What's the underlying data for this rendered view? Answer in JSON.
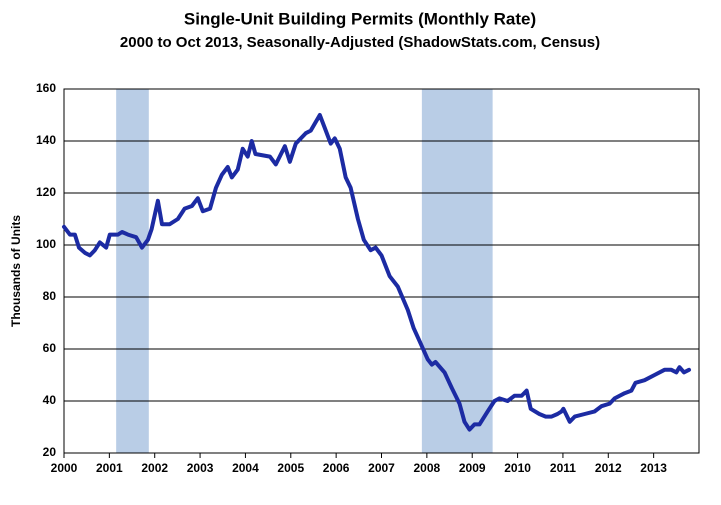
{
  "chart_data": {
    "type": "line",
    "title": "Single-Unit Building Permits (Monthly Rate)",
    "subtitle": "2000 to Oct 2013, Seasonally-Adjusted (ShadowStats.com, Census)",
    "y_label": "Thousands of Units",
    "xlim": [
      2000,
      2014
    ],
    "xticks": [
      2000,
      2001,
      2002,
      2003,
      2004,
      2005,
      2006,
      2007,
      2008,
      2009,
      2010,
      2011,
      2012,
      2013
    ],
    "ylim": [
      20,
      160
    ],
    "yticks": [
      20,
      40,
      60,
      80,
      100,
      120,
      140,
      160
    ],
    "grid": true,
    "shaded_periods": [
      [
        2001.15,
        2001.87
      ],
      [
        2007.89,
        2009.45
      ]
    ],
    "shade_color": "#b9cde6",
    "x": [
      2000.0,
      2000.13,
      2000.24,
      2000.33,
      2000.46,
      2000.57,
      2000.68,
      2000.79,
      2000.93,
      2001.01,
      2001.19,
      2001.28,
      2001.41,
      2001.59,
      2001.72,
      2001.85,
      2001.93,
      2002.07,
      2002.16,
      2002.33,
      2002.51,
      2002.66,
      2002.82,
      2002.95,
      2003.06,
      2003.22,
      2003.35,
      2003.48,
      2003.61,
      2003.7,
      2003.83,
      2003.94,
      2004.05,
      2004.14,
      2004.22,
      2004.54,
      2004.67,
      2004.87,
      2004.98,
      2005.11,
      2005.33,
      2005.44,
      2005.64,
      2005.75,
      2005.88,
      2005.97,
      2006.08,
      2006.21,
      2006.32,
      2006.48,
      2006.61,
      2006.76,
      2006.87,
      2007.0,
      2007.18,
      2007.36,
      2007.58,
      2007.71,
      2007.84,
      2008.02,
      2008.11,
      2008.19,
      2008.39,
      2008.55,
      2008.72,
      2008.83,
      2008.94,
      2009.05,
      2009.16,
      2009.34,
      2009.49,
      2009.6,
      2009.78,
      2009.93,
      2010.09,
      2010.2,
      2010.29,
      2010.48,
      2010.62,
      2010.75,
      2010.88,
      2010.97,
      2011.01,
      2011.15,
      2011.26,
      2011.48,
      2011.7,
      2011.85,
      2012.03,
      2012.14,
      2012.36,
      2012.51,
      2012.6,
      2012.8,
      2013.02,
      2013.24,
      2013.39,
      2013.5,
      2013.57,
      2013.67,
      2013.78
    ],
    "series": [
      {
        "color": "#1c2ba3",
        "values": [
          107,
          104,
          104,
          99,
          97,
          96,
          98,
          101,
          99,
          104,
          104,
          105,
          104,
          103,
          99,
          102,
          106,
          117,
          108,
          108,
          110,
          114,
          115,
          118,
          113,
          114,
          122,
          127,
          130,
          126,
          129,
          137,
          134,
          140,
          135,
          134,
          131,
          138,
          132,
          139,
          143,
          144,
          150,
          145,
          139,
          141,
          137,
          126,
          122,
          110,
          102,
          98,
          99,
          96,
          88,
          84,
          75,
          68,
          63,
          56,
          54,
          55,
          51,
          45,
          39,
          32,
          29,
          31,
          31,
          36,
          40,
          41,
          40,
          42,
          42,
          44,
          37,
          35,
          34,
          34,
          35,
          36,
          37,
          32,
          34,
          35,
          36,
          38,
          39,
          41,
          43,
          44,
          47,
          48,
          50,
          52,
          52,
          51,
          53,
          51,
          52
        ]
      }
    ]
  }
}
